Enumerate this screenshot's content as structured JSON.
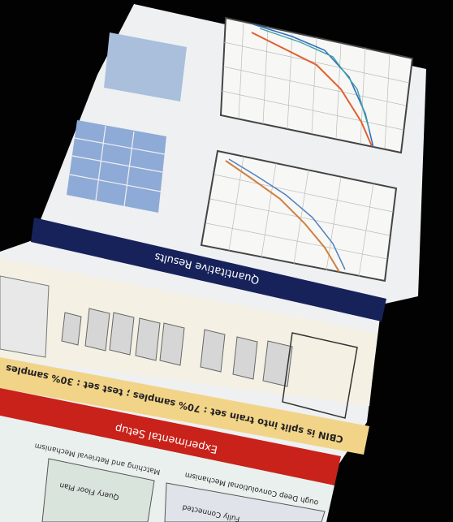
{
  "poster": {
    "sections": {
      "results": "Quantitative Results",
      "split": "CBIN is split into train set : 70% samples ; test set : 30% samples",
      "setup": "Experimental Setup",
      "matching": "Matching and Retrieval Mechanism",
      "query": "Query Floor Plan",
      "fc": "Fully Connected",
      "deep": "ough Deep Convolutional Mechanism"
    }
  }
}
